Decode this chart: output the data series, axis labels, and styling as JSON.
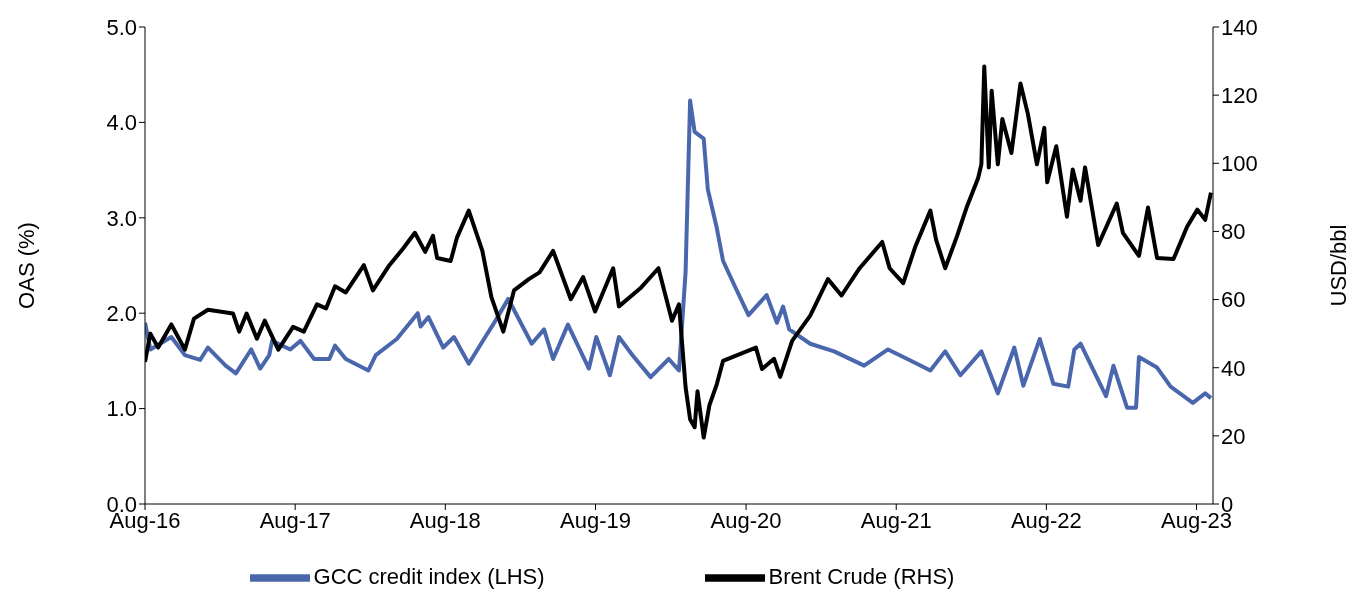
{
  "chart_data": {
    "type": "line",
    "ylabel": "OAS (%)",
    "y2label": "USD/bbl",
    "legend": "bottom",
    "grid": false,
    "marker": "none",
    "line_style": "solid",
    "xlim": [
      "2016-08-01",
      "2023-09-10"
    ],
    "xticks": [
      {
        "value": "2016-08-01",
        "label": "Aug-16"
      },
      {
        "value": "2017-08-01",
        "label": "Aug-17"
      },
      {
        "value": "2018-08-01",
        "label": "Aug-18"
      },
      {
        "value": "2019-08-01",
        "label": "Aug-19"
      },
      {
        "value": "2020-08-01",
        "label": "Aug-20"
      },
      {
        "value": "2021-08-01",
        "label": "Aug-21"
      },
      {
        "value": "2022-08-01",
        "label": "Aug-22"
      },
      {
        "value": "2023-08-01",
        "label": "Aug-23"
      }
    ],
    "ylim": [
      0,
      5
    ],
    "yticks": [
      {
        "value": 0,
        "label": "0.0"
      },
      {
        "value": 1,
        "label": "1.0"
      },
      {
        "value": 2,
        "label": "2.0"
      },
      {
        "value": 3,
        "label": "3.0"
      },
      {
        "value": 4,
        "label": "4.0"
      },
      {
        "value": 5,
        "label": "5.0"
      }
    ],
    "y2lim": [
      0,
      140
    ],
    "y2ticks": [
      0,
      20,
      40,
      60,
      80,
      100,
      120,
      140
    ],
    "series": [
      {
        "name": "GCC credit index (LHS)",
        "color": "#4a67ae",
        "x": [
          "2016-08-01",
          "2016-08-14",
          "2016-10-04",
          "2016-11-06",
          "2016-12-13",
          "2017-01-01",
          "2017-02-13",
          "2017-03-10",
          "2017-04-16",
          "2017-05-08",
          "2017-05-30",
          "2017-06-06",
          "2017-07-20",
          "2017-08-14",
          "2017-09-16",
          "2017-10-23",
          "2017-11-06",
          "2017-12-02",
          "2018-01-26",
          "2018-02-13",
          "2018-04-05",
          "2018-05-26",
          "2018-06-02",
          "2018-06-21",
          "2018-07-27",
          "2018-08-22",
          "2018-09-27",
          "2018-11-06",
          "2018-11-25",
          "2019-01-01",
          "2019-02-27",
          "2019-03-29",
          "2019-04-20",
          "2019-05-26",
          "2019-07-16",
          "2019-08-03",
          "2019-09-05",
          "2019-09-27",
          "2019-10-30",
          "2019-12-13",
          "2020-01-26",
          "2020-02-20",
          "2020-03-07",
          "2020-03-18",
          "2020-03-29",
          "2020-04-20",
          "2020-04-30",
          "2020-05-22",
          "2020-06-06",
          "2020-07-05",
          "2020-08-07",
          "2020-09-20",
          "2020-10-15",
          "2020-10-30",
          "2020-11-14",
          "2021-01-04",
          "2021-03-03",
          "2021-05-15",
          "2021-07-12",
          "2021-09-02",
          "2021-10-23",
          "2021-11-28",
          "2022-01-04",
          "2022-02-24",
          "2022-04-05",
          "2022-05-15",
          "2022-06-06",
          "2022-07-16",
          "2022-08-18",
          "2022-09-23",
          "2022-10-08",
          "2022-10-23",
          "2022-12-24",
          "2023-01-11",
          "2023-02-13",
          "2023-03-07",
          "2023-03-14",
          "2023-04-27",
          "2023-05-30",
          "2023-07-23",
          "2023-08-22",
          "2023-09-05"
        ],
        "values": [
          1.9,
          1.62,
          1.75,
          1.56,
          1.51,
          1.64,
          1.45,
          1.37,
          1.62,
          1.42,
          1.56,
          1.71,
          1.62,
          1.71,
          1.52,
          1.52,
          1.66,
          1.52,
          1.4,
          1.56,
          1.73,
          2.0,
          1.86,
          1.96,
          1.64,
          1.75,
          1.47,
          1.75,
          1.88,
          2.15,
          1.68,
          1.83,
          1.52,
          1.88,
          1.42,
          1.75,
          1.35,
          1.75,
          1.56,
          1.33,
          1.52,
          1.4,
          2.43,
          4.23,
          3.9,
          3.83,
          3.3,
          2.89,
          2.55,
          2.28,
          1.98,
          2.19,
          1.9,
          2.07,
          1.83,
          1.68,
          1.6,
          1.45,
          1.62,
          1.51,
          1.4,
          1.6,
          1.35,
          1.6,
          1.16,
          1.64,
          1.24,
          1.73,
          1.26,
          1.23,
          1.62,
          1.68,
          1.13,
          1.45,
          1.01,
          1.01,
          1.54,
          1.43,
          1.23,
          1.06,
          1.16,
          1.11
        ]
      },
      {
        "name": "Brent Crude (RHS)",
        "color": "#000000",
        "axis": "y2",
        "x": [
          "2016-08-01",
          "2016-08-14",
          "2016-09-02",
          "2016-10-04",
          "2016-11-06",
          "2016-11-28",
          "2017-01-01",
          "2017-03-03",
          "2017-03-18",
          "2017-04-05",
          "2017-04-30",
          "2017-05-19",
          "2017-06-21",
          "2017-07-27",
          "2017-08-22",
          "2017-09-23",
          "2017-10-15",
          "2017-11-06",
          "2017-12-02",
          "2018-01-15",
          "2018-02-06",
          "2018-03-18",
          "2018-04-20",
          "2018-05-19",
          "2018-06-13",
          "2018-07-02",
          "2018-07-12",
          "2018-08-14",
          "2018-08-29",
          "2018-09-27",
          "2018-10-30",
          "2018-11-21",
          "2018-12-20",
          "2019-01-15",
          "2019-02-20",
          "2019-03-18",
          "2019-04-20",
          "2019-06-02",
          "2019-07-02",
          "2019-07-31",
          "2019-09-13",
          "2019-09-27",
          "2019-11-18",
          "2020-01-01",
          "2020-02-03",
          "2020-02-20",
          "2020-03-07",
          "2020-03-18",
          "2020-03-29",
          "2020-04-05",
          "2020-04-20",
          "2020-05-04",
          "2020-05-22",
          "2020-06-06",
          "2020-08-25",
          "2020-09-09",
          "2020-10-08",
          "2020-10-23",
          "2020-11-21",
          "2021-01-04",
          "2021-02-16",
          "2021-03-21",
          "2021-05-04",
          "2021-06-28",
          "2021-07-16",
          "2021-08-18",
          "2021-09-16",
          "2021-10-23",
          "2021-11-06",
          "2021-11-28",
          "2021-12-27",
          "2022-01-19",
          "2022-02-16",
          "2022-02-24",
          "2022-03-03",
          "2022-03-14",
          "2022-03-21",
          "2022-04-05",
          "2022-04-16",
          "2022-05-08",
          "2022-05-30",
          "2022-06-17",
          "2022-07-09",
          "2022-07-27",
          "2022-08-03",
          "2022-08-25",
          "2022-09-20",
          "2022-10-04",
          "2022-10-23",
          "2022-11-03",
          "2022-12-05",
          "2023-01-19",
          "2023-02-03",
          "2023-03-14",
          "2023-04-05",
          "2023-04-27",
          "2023-06-06",
          "2023-07-09",
          "2023-08-03",
          "2023-08-22",
          "2023-09-05"
        ],
        "values": [
          41.7,
          50,
          45.9,
          52.7,
          45.3,
          54.4,
          57,
          55.9,
          50.6,
          55.9,
          48.5,
          53.8,
          45.3,
          52,
          50.6,
          58.6,
          57.4,
          63.9,
          62.1,
          70.1,
          62.7,
          70.1,
          74.9,
          79.6,
          74,
          78.7,
          72.2,
          71.3,
          78.1,
          86.1,
          74.3,
          60.7,
          50.6,
          62.7,
          66,
          68,
          74.3,
          60.1,
          66.6,
          56.5,
          69.2,
          58,
          63.3,
          69.2,
          53.8,
          58.6,
          34.3,
          24.9,
          22.5,
          33.1,
          19.5,
          29,
          35.2,
          42,
          45.9,
          39.6,
          42.6,
          37.3,
          47.9,
          55.3,
          66,
          61.2,
          69.2,
          76.9,
          69.2,
          64.8,
          75.4,
          86.1,
          77.5,
          69.2,
          78.7,
          87,
          95.6,
          99.7,
          128.4,
          98.8,
          121.3,
          99.7,
          113,
          103,
          123.4,
          114.5,
          99.7,
          110.4,
          94.4,
          105,
          84.3,
          98.2,
          89,
          98.8,
          76,
          88.2,
          79.6,
          72.8,
          87,
          72.2,
          71.9,
          81.4,
          86.4,
          83.4,
          91.4
        ]
      }
    ]
  }
}
